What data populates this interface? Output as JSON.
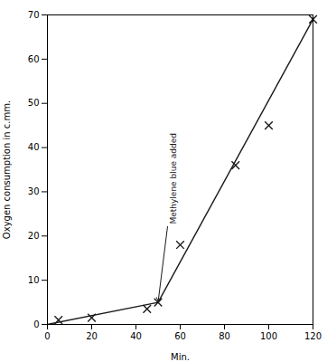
{
  "chart_data": {
    "type": "scatter",
    "xlabel": "Min.",
    "ylabel": "Oxygen consumption in c.mm.",
    "xlim": [
      0,
      120
    ],
    "ylim": [
      0,
      70
    ],
    "xticks": [
      0,
      20,
      40,
      60,
      80,
      100,
      120
    ],
    "yticks": [
      0,
      10,
      20,
      30,
      40,
      50,
      60,
      70
    ],
    "grid": false,
    "series": [
      {
        "type": "line",
        "color": "#1a1a1a",
        "x": [
          0,
          50
        ],
        "values": [
          0,
          5
        ]
      },
      {
        "type": "line",
        "color": "#1a1a1a",
        "x": [
          50,
          120
        ],
        "values": [
          5,
          69
        ]
      },
      {
        "type": "scatter",
        "marker": "x",
        "color": "#1a1a1a",
        "x": [
          5,
          20,
          45,
          50,
          60,
          85,
          100,
          120
        ],
        "values": [
          1,
          1.5,
          3.5,
          5,
          18,
          36,
          45,
          69
        ]
      }
    ],
    "annotations": [
      {
        "text": "Methylene blue added",
        "color": "#1a1a1a",
        "x": 57,
        "y": 33,
        "arrow_x": 50,
        "arrow_y": 5
      }
    ]
  }
}
